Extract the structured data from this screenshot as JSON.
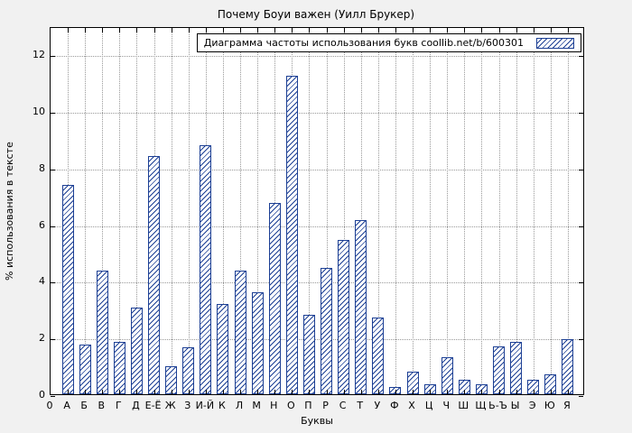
{
  "chart_data": {
    "type": "bar",
    "title": "Почему Боуи важен (Уилл Брукер)",
    "legend_label": "Диаграмма частоты использования букв coollib.net/b/600301",
    "xlabel": "Буквы",
    "ylabel": "% использования в тексте",
    "origin_label": "0",
    "categories": [
      "А",
      "Б",
      "В",
      "Г",
      "Д",
      "Е-Ё",
      "Ж",
      "З",
      "И-Й",
      "К",
      "Л",
      "М",
      "Н",
      "О",
      "П",
      "Р",
      "С",
      "Т",
      "У",
      "Ф",
      "Х",
      "Ц",
      "Ч",
      "Ш",
      "Щ",
      "Ь-Ъ",
      "Ы",
      "Э",
      "Ю",
      "Я"
    ],
    "values": [
      7.4,
      1.75,
      4.35,
      1.85,
      3.05,
      8.4,
      1.0,
      1.65,
      8.8,
      3.2,
      4.35,
      3.6,
      6.75,
      11.25,
      2.8,
      4.45,
      5.45,
      6.15,
      2.7,
      0.25,
      0.8,
      0.35,
      1.3,
      0.5,
      0.35,
      1.7,
      1.85,
      0.5,
      0.7,
      1.95
    ],
    "ylim": [
      0,
      13
    ],
    "yticks": [
      0,
      2,
      4,
      6,
      8,
      10,
      12
    ],
    "grid": true,
    "legend_position": "top-right",
    "bar_color": "#1c3f94",
    "background_color": "#f1f1f1"
  }
}
